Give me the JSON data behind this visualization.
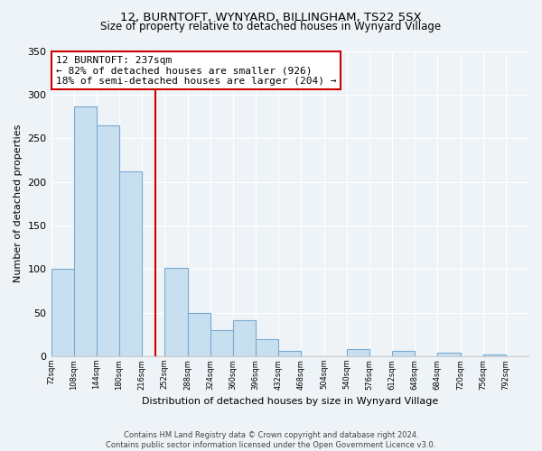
{
  "title": "12, BURNTOFT, WYNYARD, BILLINGHAM, TS22 5SX",
  "subtitle": "Size of property relative to detached houses in Wynyard Village",
  "xlabel": "Distribution of detached houses by size in Wynyard Village",
  "ylabel": "Number of detached properties",
  "bar_color": "#c8dff0",
  "bar_edge_color": "#7aaad0",
  "bin_edges": [
    72,
    108,
    144,
    180,
    216,
    252,
    288,
    324,
    360,
    396,
    432,
    468,
    504,
    540,
    576,
    612,
    648,
    684,
    720,
    756,
    792,
    828
  ],
  "bar_heights": [
    100,
    286,
    265,
    212,
    0,
    101,
    50,
    30,
    41,
    20,
    6,
    0,
    0,
    8,
    0,
    6,
    0,
    4,
    0,
    2,
    0
  ],
  "tick_labels": [
    "72sqm",
    "108sqm",
    "144sqm",
    "180sqm",
    "216sqm",
    "252sqm",
    "288sqm",
    "324sqm",
    "360sqm",
    "396sqm",
    "432sqm",
    "468sqm",
    "504sqm",
    "540sqm",
    "576sqm",
    "612sqm",
    "648sqm",
    "684sqm",
    "720sqm",
    "756sqm",
    "792sqm"
  ],
  "ylim": [
    0,
    350
  ],
  "yticks": [
    0,
    50,
    100,
    150,
    200,
    250,
    300,
    350
  ],
  "vline_x": 237,
  "vline_color": "#cc0000",
  "annotation_title": "12 BURNTOFT: 237sqm",
  "annotation_line1": "← 82% of detached houses are smaller (926)",
  "annotation_line2": "18% of semi-detached houses are larger (204) →",
  "annotation_box_color": "#ffffff",
  "annotation_box_edge": "#cc0000",
  "footer_line1": "Contains HM Land Registry data © Crown copyright and database right 2024.",
  "footer_line2": "Contains public sector information licensed under the Open Government Licence v3.0.",
  "background_color": "#eef3f8",
  "plot_background": "#eef3f8",
  "grid_color": "#ffffff"
}
